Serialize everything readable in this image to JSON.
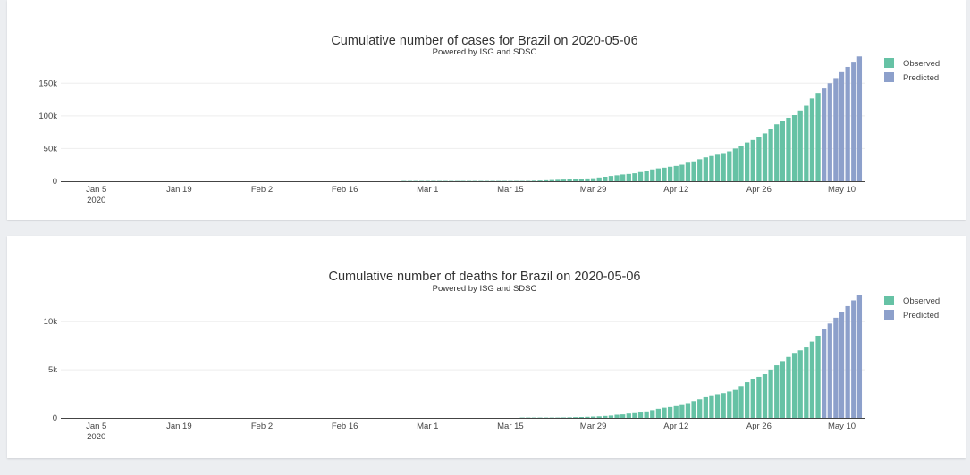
{
  "colors": {
    "observed": "#66c2a5",
    "predicted": "#8da0cb",
    "grid": "#eeeeee",
    "axis": "#444444"
  },
  "chart_data": [
    {
      "type": "bar",
      "title": "Cumulative number of cases for Brazil on 2020-05-06",
      "subtitle": "Powered by ISG and SDSC",
      "xlabel": "",
      "ylabel": "",
      "xlim": [
        "2019-12-30",
        "2020-05-14"
      ],
      "ylim": [
        0,
        190000
      ],
      "x_ticks": [
        {
          "date": "2020-01-05",
          "label": "Jan 5",
          "sublabel": "2020"
        },
        {
          "date": "2020-01-19",
          "label": "Jan 19"
        },
        {
          "date": "2020-02-02",
          "label": "Feb 2"
        },
        {
          "date": "2020-02-16",
          "label": "Feb 16"
        },
        {
          "date": "2020-03-01",
          "label": "Mar 1"
        },
        {
          "date": "2020-03-15",
          "label": "Mar 15"
        },
        {
          "date": "2020-03-29",
          "label": "Mar 29"
        },
        {
          "date": "2020-04-12",
          "label": "Apr 12"
        },
        {
          "date": "2020-04-26",
          "label": "Apr 26"
        },
        {
          "date": "2020-05-10",
          "label": "May 10"
        }
      ],
      "y_ticks": [
        {
          "value": 0,
          "label": "0"
        },
        {
          "value": 50000,
          "label": "50k"
        },
        {
          "value": 100000,
          "label": "100k"
        },
        {
          "value": 150000,
          "label": "150k"
        }
      ],
      "legend": {
        "placement": "top-right"
      },
      "series": [
        {
          "name": "Observed",
          "x": [
            "2020-02-26",
            "2020-02-27",
            "2020-02-28",
            "2020-02-29",
            "2020-03-01",
            "2020-03-02",
            "2020-03-03",
            "2020-03-04",
            "2020-03-05",
            "2020-03-06",
            "2020-03-07",
            "2020-03-08",
            "2020-03-09",
            "2020-03-10",
            "2020-03-11",
            "2020-03-12",
            "2020-03-13",
            "2020-03-14",
            "2020-03-15",
            "2020-03-16",
            "2020-03-17",
            "2020-03-18",
            "2020-03-19",
            "2020-03-20",
            "2020-03-21",
            "2020-03-22",
            "2020-03-23",
            "2020-03-24",
            "2020-03-25",
            "2020-03-26",
            "2020-03-27",
            "2020-03-28",
            "2020-03-29",
            "2020-03-30",
            "2020-03-31",
            "2020-04-01",
            "2020-04-02",
            "2020-04-03",
            "2020-04-04",
            "2020-04-05",
            "2020-04-06",
            "2020-04-07",
            "2020-04-08",
            "2020-04-09",
            "2020-04-10",
            "2020-04-11",
            "2020-04-12",
            "2020-04-13",
            "2020-04-14",
            "2020-04-15",
            "2020-04-16",
            "2020-04-17",
            "2020-04-18",
            "2020-04-19",
            "2020-04-20",
            "2020-04-21",
            "2020-04-22",
            "2020-04-23",
            "2020-04-24",
            "2020-04-25",
            "2020-04-26",
            "2020-04-27",
            "2020-04-28",
            "2020-04-29",
            "2020-04-30",
            "2020-05-01",
            "2020-05-02",
            "2020-05-03",
            "2020-05-04",
            "2020-05-05",
            "2020-05-06"
          ],
          "values": [
            1,
            1,
            1,
            2,
            2,
            2,
            2,
            4,
            8,
            13,
            25,
            30,
            30,
            34,
            52,
            77,
            121,
            200,
            234,
            291,
            428,
            621,
            904,
            1128,
            1546,
            1924,
            2247,
            2554,
            2985,
            3417,
            3904,
            4256,
            4579,
            5717,
            6836,
            8044,
            9056,
            10360,
            11130,
            12161,
            14034,
            16170,
            18092,
            19638,
            20727,
            22169,
            23430,
            25262,
            28320,
            30425,
            33682,
            36599,
            38654,
            40581,
            43079,
            45757,
            50036,
            54043,
            59324,
            63100,
            67446,
            73235,
            79685,
            87187,
            92202,
            97100,
            101147,
            108266,
            115455,
            126611,
            135106
          ]
        },
        {
          "name": "Predicted",
          "x": [
            "2020-05-07",
            "2020-05-08",
            "2020-05-09",
            "2020-05-10",
            "2020-05-11",
            "2020-05-12",
            "2020-05-13"
          ],
          "values": [
            142000,
            150000,
            158000,
            167000,
            175000,
            183000,
            191000
          ]
        }
      ]
    },
    {
      "type": "bar",
      "title": "Cumulative number of deaths for Brazil on 2020-05-06",
      "subtitle": "Powered by ISG and SDSC",
      "xlabel": "",
      "ylabel": "",
      "xlim": [
        "2019-12-30",
        "2020-05-14"
      ],
      "ylim": [
        0,
        12800
      ],
      "x_ticks": [
        {
          "date": "2020-01-05",
          "label": "Jan 5",
          "sublabel": "2020"
        },
        {
          "date": "2020-01-19",
          "label": "Jan 19"
        },
        {
          "date": "2020-02-02",
          "label": "Feb 2"
        },
        {
          "date": "2020-02-16",
          "label": "Feb 16"
        },
        {
          "date": "2020-03-01",
          "label": "Mar 1"
        },
        {
          "date": "2020-03-15",
          "label": "Mar 15"
        },
        {
          "date": "2020-03-29",
          "label": "Mar 29"
        },
        {
          "date": "2020-04-12",
          "label": "Apr 12"
        },
        {
          "date": "2020-04-26",
          "label": "Apr 26"
        },
        {
          "date": "2020-05-10",
          "label": "May 10"
        }
      ],
      "y_ticks": [
        {
          "value": 0,
          "label": "0"
        },
        {
          "value": 5000,
          "label": "5k"
        },
        {
          "value": 10000,
          "label": "10k"
        }
      ],
      "legend": {
        "placement": "top-right"
      },
      "series": [
        {
          "name": "Observed",
          "x": [
            "2020-03-17",
            "2020-03-18",
            "2020-03-19",
            "2020-03-20",
            "2020-03-21",
            "2020-03-22",
            "2020-03-23",
            "2020-03-24",
            "2020-03-25",
            "2020-03-26",
            "2020-03-27",
            "2020-03-28",
            "2020-03-29",
            "2020-03-30",
            "2020-03-31",
            "2020-04-01",
            "2020-04-02",
            "2020-04-03",
            "2020-04-04",
            "2020-04-05",
            "2020-04-06",
            "2020-04-07",
            "2020-04-08",
            "2020-04-09",
            "2020-04-10",
            "2020-04-11",
            "2020-04-12",
            "2020-04-13",
            "2020-04-14",
            "2020-04-15",
            "2020-04-16",
            "2020-04-17",
            "2020-04-18",
            "2020-04-19",
            "2020-04-20",
            "2020-04-21",
            "2020-04-22",
            "2020-04-23",
            "2020-04-24",
            "2020-04-25",
            "2020-04-26",
            "2020-04-27",
            "2020-04-28",
            "2020-04-29",
            "2020-04-30",
            "2020-05-01",
            "2020-05-02",
            "2020-05-03",
            "2020-05-04",
            "2020-05-05",
            "2020-05-06"
          ],
          "values": [
            1,
            4,
            7,
            11,
            18,
            25,
            34,
            46,
            59,
            77,
            92,
            111,
            136,
            159,
            201,
            240,
            324,
            359,
            445,
            486,
            553,
            667,
            800,
            941,
            1056,
            1124,
            1223,
            1328,
            1532,
            1736,
            1924,
            2141,
            2347,
            2462,
            2575,
            2741,
            2906,
            3313,
            3704,
            4045,
            4271,
            4543,
            5017,
            5466,
            5901,
            6329,
            6750,
            7025,
            7321,
            7921,
            8536
          ]
        },
        {
          "name": "Predicted",
          "x": [
            "2020-05-07",
            "2020-05-08",
            "2020-05-09",
            "2020-05-10",
            "2020-05-11",
            "2020-05-12",
            "2020-05-13"
          ],
          "values": [
            9200,
            9800,
            10400,
            11000,
            11600,
            12200,
            12800
          ]
        }
      ]
    }
  ]
}
